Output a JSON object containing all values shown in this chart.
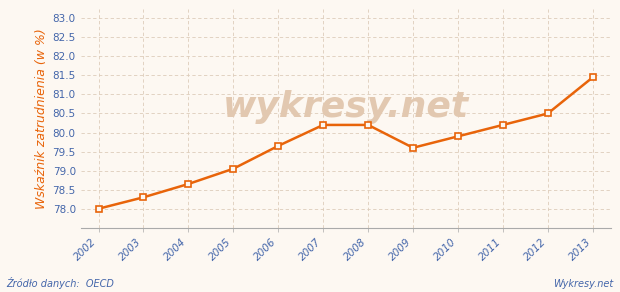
{
  "years": [
    2002,
    2003,
    2004,
    2005,
    2006,
    2007,
    2008,
    2009,
    2010,
    2011,
    2012,
    2013
  ],
  "values": [
    78.0,
    78.3,
    78.65,
    79.05,
    79.65,
    80.2,
    80.2,
    79.6,
    79.9,
    80.2,
    80.5,
    81.45
  ],
  "line_color": "#E8640A",
  "marker_color": "#E8640A",
  "marker_face": "#FDF8F2",
  "bg_color": "#FDF8F2",
  "grid_color": "#DDCCBB",
  "ylabel": "Wskaźnik zatrudnienia (w %)",
  "ylabel_color": "#E8640A",
  "xlabel_color": "#4466AA",
  "source_text": "Źródło danych:  OECD",
  "watermark_text": "wykresy.net",
  "watermark_color": "#E2C8B0",
  "source_color": "#4466AA",
  "branding_text": "Wykresy.net",
  "branding_color": "#4466AA",
  "ylim_min": 77.5,
  "ylim_max": 83.25,
  "yticks": [
    78.0,
    78.5,
    79.0,
    79.5,
    80.0,
    80.5,
    81.0,
    81.5,
    82.0,
    82.5,
    83.0
  ],
  "ylabel_fontsize": 9,
  "tick_fontsize": 7.5
}
